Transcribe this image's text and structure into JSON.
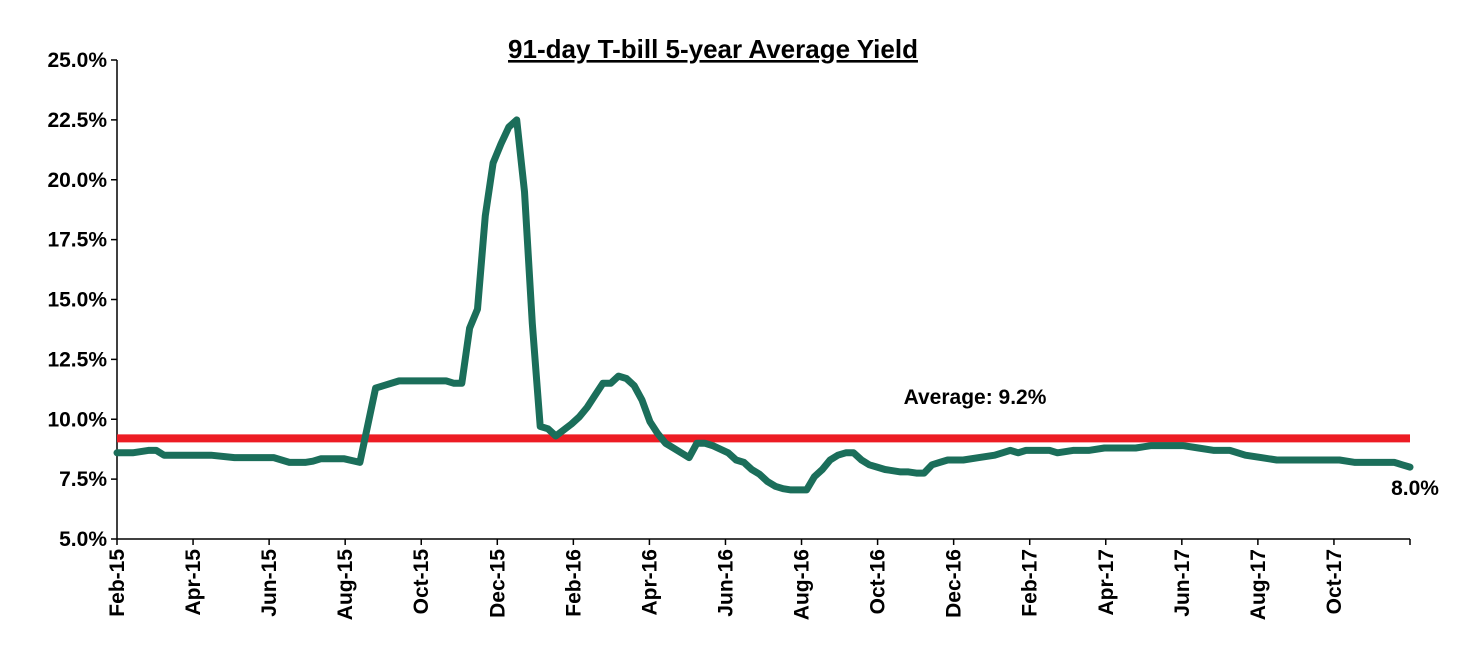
{
  "chart_data": {
    "type": "line",
    "title": "91-day T-bill 5-year Average Yield",
    "xlabel": "",
    "ylabel": "",
    "ylim": [
      5.0,
      25.0
    ],
    "y_ticks": [
      "5.0%",
      "7.5%",
      "10.0%",
      "12.5%",
      "15.0%",
      "17.5%",
      "20.0%",
      "22.5%",
      "25.0%"
    ],
    "x_ticks": [
      "Feb-15",
      "Apr-15",
      "Jun-15",
      "Aug-15",
      "Oct-15",
      "Dec-15",
      "Feb-16",
      "Apr-16",
      "Jun-16",
      "Aug-16",
      "Oct-16",
      "Dec-16",
      "Feb-17",
      "Apr-17",
      "Jun-17",
      "Aug-17",
      "Oct-17"
    ],
    "x_range_weeks": [
      0,
      165
    ],
    "grid": false,
    "legend": "none",
    "colors": {
      "series": "#1b6e5a",
      "average": "#ed1c24"
    },
    "average": {
      "value": 9.2,
      "label": "Average: 9.2%"
    },
    "end_label": "8.0%",
    "series": [
      {
        "x_weeks": [
          0,
          2,
          4,
          5,
          6,
          9,
          10,
          11,
          12,
          15,
          16,
          18,
          19,
          20,
          22,
          23,
          24,
          25,
          26,
          27,
          28,
          29,
          31,
          33,
          34,
          36,
          38,
          40,
          42,
          43,
          44,
          45,
          46,
          47,
          48,
          49,
          50,
          51,
          52,
          53,
          54,
          55,
          56,
          58,
          59,
          60,
          61,
          62,
          63,
          64,
          65,
          66,
          67,
          68,
          69,
          70,
          71,
          72,
          73,
          74,
          75,
          76,
          78,
          79,
          80,
          81,
          82,
          83,
          84,
          85,
          86,
          87,
          88,
          89,
          90,
          91,
          92,
          93,
          94,
          95,
          96,
          97,
          98,
          100,
          101,
          102,
          103,
          104,
          105,
          106,
          108,
          110,
          112,
          113,
          114,
          115,
          116,
          118,
          119,
          120,
          122,
          124,
          126,
          128,
          130,
          132,
          134,
          136,
          138,
          140,
          142,
          144,
          146,
          148,
          150,
          152,
          154,
          156,
          158,
          160,
          162,
          163,
          164,
          165
        ],
        "y": [
          8.6,
          8.6,
          8.7,
          8.7,
          8.5,
          8.5,
          8.5,
          8.5,
          8.5,
          8.4,
          8.4,
          8.4,
          8.4,
          8.4,
          8.2,
          8.2,
          8.2,
          8.25,
          8.35,
          8.35,
          8.35,
          8.35,
          8.2,
          11.3,
          11.4,
          11.6,
          11.6,
          11.6,
          11.6,
          11.5,
          11.5,
          13.8,
          14.6,
          18.5,
          20.7,
          21.5,
          22.2,
          22.5,
          19.5,
          14.0,
          9.7,
          9.6,
          9.3,
          9.8,
          10.1,
          10.5,
          11.0,
          11.5,
          11.5,
          11.8,
          11.7,
          11.4,
          10.8,
          9.9,
          9.4,
          9.0,
          8.8,
          8.6,
          8.4,
          9.0,
          9.0,
          8.9,
          8.6,
          8.3,
          8.2,
          7.9,
          7.7,
          7.4,
          7.2,
          7.1,
          7.05,
          7.05,
          7.05,
          7.6,
          7.9,
          8.3,
          8.5,
          8.6,
          8.6,
          8.3,
          8.1,
          8.0,
          7.9,
          7.8,
          7.8,
          7.75,
          7.75,
          8.1,
          8.2,
          8.3,
          8.3,
          8.4,
          8.5,
          8.6,
          8.7,
          8.6,
          8.7,
          8.7,
          8.7,
          8.6,
          8.7,
          8.7,
          8.8,
          8.8,
          8.8,
          8.9,
          8.9,
          8.9,
          8.8,
          8.7,
          8.7,
          8.5,
          8.4,
          8.3,
          8.3,
          8.3,
          8.3,
          8.3,
          8.2,
          8.2,
          8.2,
          8.2,
          8.1,
          8.0
        ]
      }
    ]
  }
}
